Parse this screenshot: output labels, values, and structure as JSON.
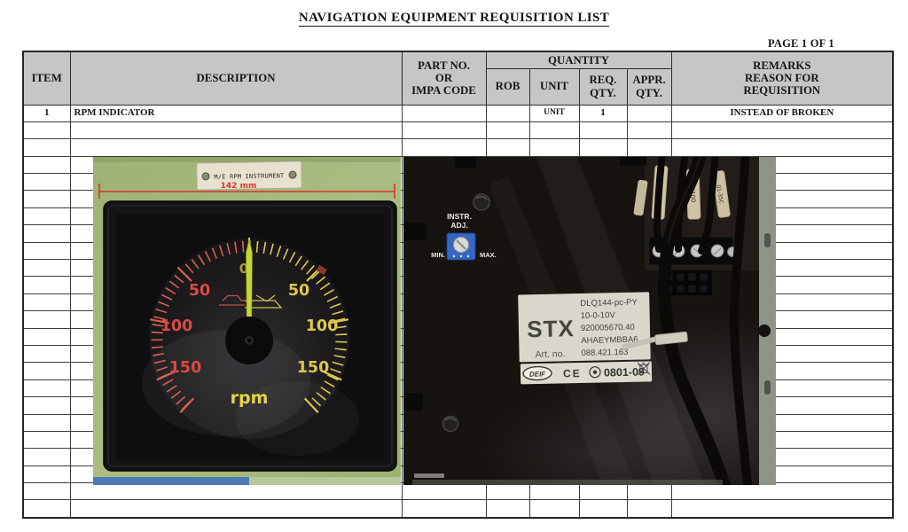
{
  "doc": {
    "title": "NAVIGATION EQUIPMENT REQUISITION LIST",
    "page_label": "PAGE 1 OF 1"
  },
  "table": {
    "headers": {
      "item": "ITEM",
      "description": "DESCRIPTION",
      "part_no": "PART NO.\nOR\nIMPA CODE",
      "quantity": "QUANTITY",
      "rob": "ROB",
      "unit": "UNIT",
      "req_qty": "REQ.\nQTY.",
      "appr_qty": "APPR.\nQTY.",
      "remarks": "REMARKS\nREASON FOR\nREQUISITION"
    },
    "column_keys": [
      "item",
      "description",
      "part_no",
      "rob",
      "unit",
      "req_qty",
      "appr_qty",
      "remarks"
    ],
    "rows": [
      {
        "item": "1",
        "description": "RPM INDICATOR",
        "part_no": "",
        "rob": "",
        "unit": "UNIT",
        "req_qty": "1",
        "appr_qty": "",
        "remarks": "INSTEAD OF BROKEN"
      }
    ],
    "empty_rows": 23
  },
  "photo_left": {
    "plate_label": "M/E RPM INSTRUMENT",
    "dimension": "142 mm",
    "gauge": {
      "zero": "0",
      "left_values": [
        "50",
        "100",
        "150"
      ],
      "right_values": [
        "50",
        "100",
        "150"
      ],
      "unit": "rpm"
    },
    "colors": {
      "panel_green": "#a7bb80",
      "annotation_red": "#d6362b",
      "scale_red": "#d7604f",
      "scale_yellow": "#dcc84a",
      "needle": "#c6d830"
    }
  },
  "photo_right": {
    "adj_label_1": "INSTR.",
    "adj_label_2": "ADJ.",
    "min_label": "MIN.",
    "max_label": "MAX.",
    "brand": "STX",
    "art_no_label": "Art. no.",
    "model_lines": [
      "DLQ144-pc-PY",
      "10-0-10V",
      "920005670.40",
      "AHAEYMBBA6",
      "088.421.163"
    ],
    "deif_logo": "DEIF",
    "ce_mark": "CE",
    "date_code": "0801-09",
    "cable_markers": [
      "D100",
      "01-35C"
    ],
    "colors": {
      "pot_blue": "#3569c1",
      "panel_black": "#17130f"
    }
  }
}
